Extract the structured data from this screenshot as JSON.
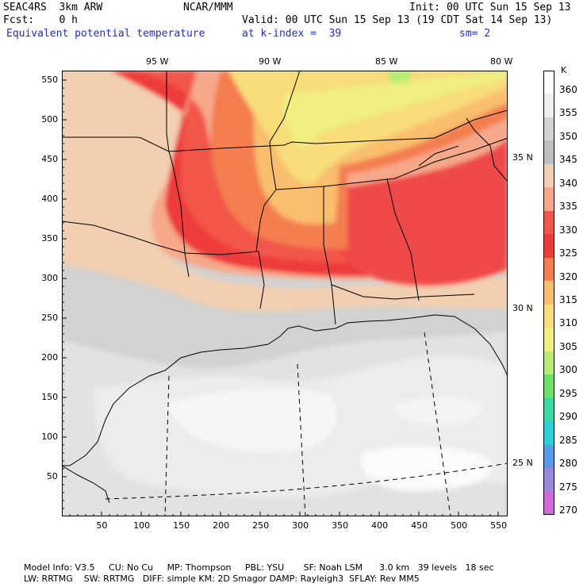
{
  "header": {
    "model": "SEAC4RS  3km ARW",
    "org": "NCAR/MMM",
    "init": "Init: 00 UTC Sun 15 Sep 13",
    "fcst": "Fcst:    0 h",
    "valid": "Valid: 00 UTC Sun 15 Sep 13 (19 CDT Sat 14 Sep 13)",
    "field": "Equivalent potential temperature",
    "level": "at k-index =  39",
    "smooth": "sm= 2"
  },
  "map": {
    "x_ticks": [
      "50",
      "100",
      "150",
      "200",
      "250",
      "300",
      "350",
      "400",
      "450",
      "500",
      "550"
    ],
    "y_ticks": [
      "550",
      "500",
      "450",
      "400",
      "350",
      "300",
      "250",
      "200",
      "150",
      "100",
      "50"
    ],
    "top_labels": [
      "95 W",
      "90 W",
      "85 W",
      "80 W"
    ],
    "right_labels": [
      "35 N",
      "30 N",
      "25 N"
    ]
  },
  "legend": {
    "unit": "K",
    "levels": [
      "360",
      "355",
      "350",
      "345",
      "340",
      "335",
      "330",
      "325",
      "320",
      "315",
      "310",
      "305",
      "300",
      "295",
      "290",
      "285",
      "280",
      "275",
      "270"
    ],
    "colors": [
      "#ffffff",
      "#eeeeee",
      "#d2d2d2",
      "#bfbfbf",
      "#f2cfb0",
      "#f6a88a",
      "#f2564a",
      "#ee3a3a",
      "#f47e50",
      "#f9be6e",
      "#f8dd7a",
      "#f0ef80",
      "#b8ec76",
      "#6ce06a",
      "#38d8a8",
      "#2ad0d8",
      "#5a9aea",
      "#9a86da",
      "#d06ad8"
    ]
  },
  "footer": {
    "line1": "Model Info: V3.5     CU: No Cu     MP: Thompson     PBL: YSU       SF: Noah LSM      3.0 km   39 levels   18 sec",
    "line2": "LW: RRTMG    SW: RRTMG   DIFF: simple KM: 2D Smagor DAMP: Rayleigh3  SFLAY: Rev MM5"
  }
}
